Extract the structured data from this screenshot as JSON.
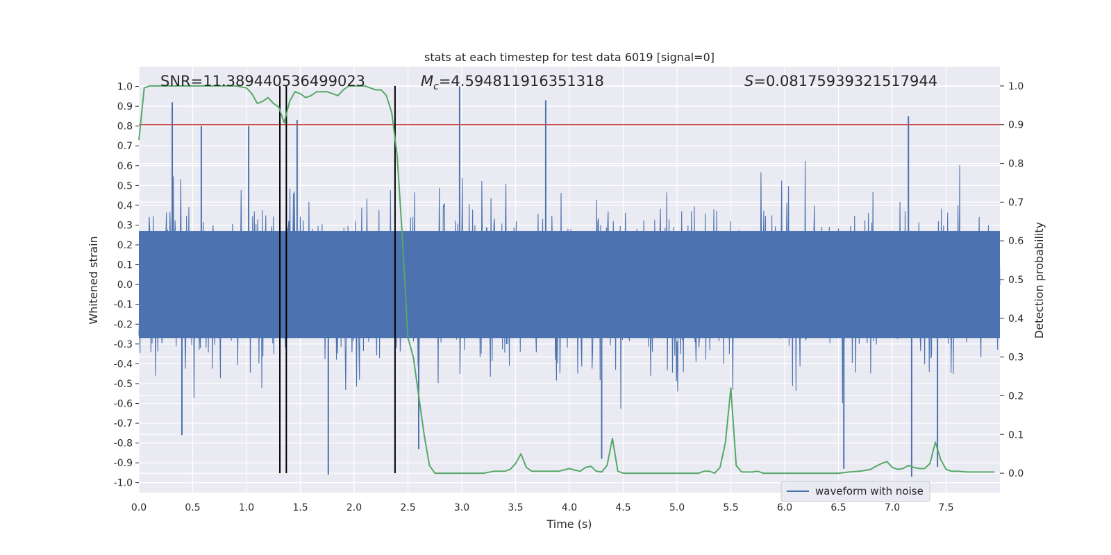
{
  "chart_data": {
    "type": "line",
    "title": "stats at each timestep for test data 6019 [signal=0]",
    "xlabel": "Time (s)",
    "ylabel": "Whitened strain",
    "y2label": "Detection probability",
    "xlim": [
      0.0,
      8.0
    ],
    "ylim": [
      -1.05,
      1.1
    ],
    "y2lim": [
      -0.05,
      1.05
    ],
    "x_ticks": [
      "0.0",
      "0.5",
      "1.0",
      "1.5",
      "2.0",
      "2.5",
      "3.0",
      "3.5",
      "4.0",
      "4.5",
      "5.0",
      "5.5",
      "6.0",
      "6.5",
      "7.0",
      "7.5"
    ],
    "y_ticks": [
      "1.0",
      "0.9",
      "0.8",
      "0.7",
      "0.6",
      "0.5",
      "0.4",
      "0.3",
      "0.2",
      "0.1",
      "0.0",
      "-0.1",
      "-0.2",
      "-0.3",
      "-0.4",
      "-0.5",
      "-0.6",
      "-0.7",
      "-0.8",
      "-0.9",
      "-1.0"
    ],
    "y2_ticks": [
      "1.0",
      "0.9",
      "0.8",
      "0.7",
      "0.6",
      "0.5",
      "0.4",
      "0.3",
      "0.2",
      "0.1",
      "0.0"
    ],
    "grid": true,
    "legend": {
      "entries": [
        "waveform with noise"
      ],
      "placement": "lower-right"
    },
    "annotations": {
      "snr": "SNR=11.389440536499023",
      "mc_symbol": "M",
      "mc_sub": "c",
      "mc_value": "=4.594811916351318",
      "s_symbol": "S",
      "s_value": "=0.08175939321517944"
    },
    "threshold": {
      "y2": 0.9,
      "color": "#c44e52"
    },
    "vertical_lines": [
      1.31,
      1.37,
      2.38
    ],
    "series": [
      {
        "name": "waveform with noise",
        "axis": "left",
        "color": "#4c72b0",
        "style": "dense noise, typical amplitude about ±0.5, peaks to ±1.0",
        "peaks": [
          {
            "x": 0.31,
            "y": 0.92
          },
          {
            "x": 0.58,
            "y": 0.8
          },
          {
            "x": 1.02,
            "y": 0.8
          },
          {
            "x": 1.47,
            "y": 0.83
          },
          {
            "x": 2.98,
            "y": 1.0
          },
          {
            "x": 3.78,
            "y": 0.93
          },
          {
            "x": 7.15,
            "y": 0.85
          },
          {
            "x": 0.4,
            "y": -0.76
          },
          {
            "x": 1.76,
            "y": -0.96
          },
          {
            "x": 2.6,
            "y": -0.83
          },
          {
            "x": 4.3,
            "y": -0.88
          },
          {
            "x": 6.55,
            "y": -0.93
          },
          {
            "x": 7.18,
            "y": -0.97
          },
          {
            "x": 7.42,
            "y": -0.92
          }
        ]
      },
      {
        "name": "",
        "axis": "right",
        "color": "#55a868",
        "x": [
          0.0,
          0.05,
          0.1,
          0.2,
          0.3,
          0.4,
          0.5,
          0.6,
          0.7,
          0.8,
          0.9,
          1.0,
          1.05,
          1.1,
          1.15,
          1.2,
          1.25,
          1.3,
          1.35,
          1.4,
          1.45,
          1.5,
          1.55,
          1.6,
          1.65,
          1.7,
          1.75,
          1.8,
          1.85,
          1.9,
          1.95,
          2.0,
          2.05,
          2.1,
          2.15,
          2.2,
          2.25,
          2.3,
          2.35,
          2.4,
          2.45,
          2.5,
          2.55,
          2.6,
          2.65,
          2.7,
          2.75,
          2.8,
          2.9,
          3.0,
          3.1,
          3.2,
          3.3,
          3.4,
          3.45,
          3.5,
          3.55,
          3.6,
          3.65,
          3.7,
          3.8,
          3.9,
          4.0,
          4.05,
          4.1,
          4.15,
          4.2,
          4.25,
          4.3,
          4.35,
          4.4,
          4.45,
          4.5,
          4.6,
          4.7,
          4.8,
          4.9,
          5.0,
          5.1,
          5.2,
          5.25,
          5.3,
          5.35,
          5.4,
          5.45,
          5.5,
          5.55,
          5.6,
          5.7,
          5.75,
          5.8,
          5.9,
          6.0,
          6.1,
          6.2,
          6.3,
          6.4,
          6.5,
          6.6,
          6.7,
          6.8,
          6.85,
          6.9,
          6.95,
          7.0,
          7.05,
          7.1,
          7.15,
          7.2,
          7.25,
          7.3,
          7.35,
          7.4,
          7.45,
          7.5,
          7.55,
          7.6,
          7.7,
          7.8,
          7.9,
          7.95
        ],
        "y": [
          0.86,
          0.995,
          1.0,
          1.0,
          1.0,
          1.0,
          1.0,
          1.0,
          1.0,
          1.0,
          1.0,
          0.995,
          0.98,
          0.955,
          0.96,
          0.97,
          0.955,
          0.945,
          0.905,
          0.96,
          0.985,
          0.98,
          0.97,
          0.975,
          0.985,
          0.985,
          0.985,
          0.98,
          0.975,
          0.99,
          1.0,
          1.0,
          1.0,
          1.0,
          0.995,
          0.99,
          0.99,
          0.975,
          0.93,
          0.82,
          0.6,
          0.35,
          0.3,
          0.2,
          0.1,
          0.02,
          0.0,
          0.0,
          0.0,
          0.0,
          0.0,
          0.0,
          0.005,
          0.005,
          0.01,
          0.025,
          0.05,
          0.015,
          0.005,
          0.005,
          0.005,
          0.005,
          0.012,
          0.008,
          0.005,
          0.015,
          0.018,
          0.005,
          0.003,
          0.02,
          0.09,
          0.005,
          0.0,
          0.0,
          0.0,
          0.0,
          0.0,
          0.0,
          0.0,
          0.0,
          0.005,
          0.005,
          0.0,
          0.015,
          0.08,
          0.22,
          0.02,
          0.003,
          0.003,
          0.005,
          0.0,
          0.0,
          0.0,
          0.0,
          0.0,
          0.0,
          0.0,
          0.0,
          0.003,
          0.005,
          0.01,
          0.018,
          0.025,
          0.03,
          0.015,
          0.01,
          0.012,
          0.02,
          0.015,
          0.012,
          0.012,
          0.025,
          0.08,
          0.035,
          0.01,
          0.005,
          0.005,
          0.003,
          0.003,
          0.003,
          0.003
        ]
      }
    ]
  }
}
